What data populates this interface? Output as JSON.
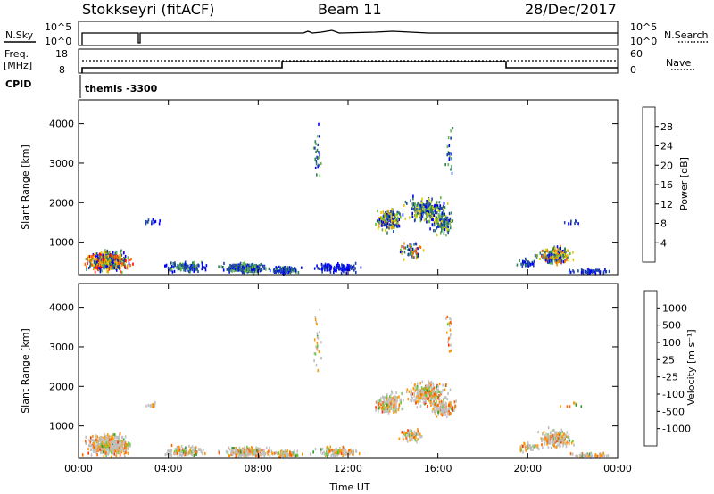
{
  "header": {
    "radar": "Stokkseyri (fitACF)",
    "beam": "Beam 11",
    "date": "28/Dec/2017"
  },
  "panels": {
    "nsky": {
      "left_label": "N.Sky",
      "left_ticks": [
        "10^5",
        "10^0"
      ],
      "right_label": "N.Search",
      "right_ticks": [
        "10^5",
        "10^0"
      ]
    },
    "freq": {
      "left_label_1": "Freq.",
      "left_label_2": "[MHz]",
      "left_ticks": [
        "18",
        "8"
      ],
      "right_label": "Nave",
      "right_ticks": [
        "60",
        "0"
      ]
    },
    "cpid": {
      "label": "CPID",
      "program": "themis -3300"
    }
  },
  "colors": {
    "power": [
      "#0000ff",
      "#1d44a8",
      "#2f7f5f",
      "#66bb44",
      "#ddcc00",
      "#f0a000",
      "#ff6600",
      "#ff0000"
    ],
    "velocity": [
      "#0033cc",
      "#336666",
      "#339933",
      "#66cc33",
      "#c0c0c0",
      "#ff9900",
      "#ff6600",
      "#ff3300",
      "#ff0000"
    ]
  },
  "chart_data": [
    {
      "type": "heatmap",
      "title": "",
      "ylabel": "Slant Range [km]",
      "xlabel": "",
      "x_ticks": [
        "00:00",
        "04:00",
        "08:00",
        "12:00",
        "16:00",
        "20:00",
        "00:00"
      ],
      "y_ticks": [
        "1000",
        "2000",
        "3000",
        "4000"
      ],
      "ylim": [
        180,
        4600
      ],
      "xlim_hours": [
        0,
        24
      ],
      "colorbar": {
        "label": "Power [dB]",
        "ticks": [
          "4",
          "8",
          "12",
          "16",
          "20",
          "24",
          "28"
        ]
      }
    },
    {
      "type": "heatmap",
      "title": "",
      "ylabel": "Slant Range [km]",
      "xlabel": "Time UT",
      "x_ticks": [
        "00:00",
        "04:00",
        "08:00",
        "12:00",
        "16:00",
        "20:00",
        "00:00"
      ],
      "y_ticks": [
        "1000",
        "2000",
        "3000",
        "4000"
      ],
      "ylim": [
        180,
        4600
      ],
      "xlim_hours": [
        0,
        24
      ],
      "colorbar": {
        "label": "Velocity [m s⁻¹]",
        "ticks": [
          "1000",
          "500",
          "100",
          "25",
          "-25",
          "-100",
          "-500",
          "-1000"
        ]
      }
    }
  ]
}
